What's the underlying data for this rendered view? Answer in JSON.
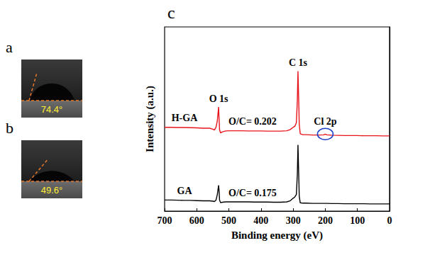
{
  "panels": [
    {
      "letter": "a",
      "contact_angle": {
        "value": 74.4,
        "label": "74.4°"
      }
    },
    {
      "letter": "b",
      "contact_angle": {
        "value": 49.6,
        "label": "49.6°"
      }
    }
  ],
  "chart_data": {
    "type": "line",
    "panel_letter": "c",
    "x_label": "Binding energy (eV)",
    "y_label": "Intensity (a.u.)",
    "x": [
      700,
      680,
      660,
      640,
      620,
      600,
      580,
      560,
      550,
      545,
      540,
      536,
      532,
      531,
      529,
      526,
      520,
      510,
      500,
      480,
      460,
      440,
      420,
      400,
      380,
      360,
      340,
      320,
      310,
      300,
      295,
      290,
      287,
      285,
      283,
      281,
      278,
      270,
      260,
      240,
      220,
      205,
      200,
      195,
      180,
      160,
      140,
      120,
      100,
      80,
      60,
      40,
      20,
      0
    ],
    "xlim": [
      700,
      0
    ],
    "xticks": [
      700,
      600,
      500,
      400,
      300,
      200,
      100,
      0
    ],
    "ylim": [
      0,
      100
    ],
    "tick_labels": "x",
    "grid": false,
    "series": [
      {
        "name": "H-GA",
        "color": "#e8141b",
        "annotation": "O/C= 0.202",
        "values": [
          45.5,
          45.5,
          45.4,
          45.4,
          45.3,
          45.2,
          45.0,
          45.0,
          44.5,
          44.0,
          45.5,
          49.0,
          56.5,
          52.0,
          44.0,
          42.5,
          43.0,
          43.5,
          43.6,
          43.6,
          43.6,
          43.5,
          43.5,
          43.5,
          43.4,
          43.4,
          43.4,
          43.6,
          44.2,
          45.5,
          46.0,
          48.0,
          60.0,
          76.0,
          62.0,
          47.0,
          42.0,
          41.5,
          41.5,
          41.3,
          41.3,
          41.4,
          41.8,
          41.4,
          41.2,
          41.1,
          41.0,
          41.0,
          41.0,
          40.9,
          40.9,
          40.9,
          40.8,
          40.8
        ]
      },
      {
        "name": "GA",
        "color": "#000000",
        "annotation": "O/C= 0.175",
        "values": [
          6.0,
          6.0,
          5.9,
          5.8,
          5.8,
          5.7,
          5.6,
          5.6,
          5.4,
          5.2,
          6.0,
          9.0,
          14.0,
          12.0,
          6.0,
          4.6,
          4.8,
          5.0,
          5.0,
          5.0,
          5.0,
          5.0,
          4.9,
          4.9,
          4.9,
          4.8,
          4.8,
          5.0,
          5.5,
          7.0,
          7.6,
          9.0,
          20.0,
          36.0,
          22.0,
          8.0,
          4.5,
          4.3,
          4.3,
          4.2,
          4.2,
          4.2,
          4.2,
          4.2,
          4.1,
          4.1,
          4.0,
          4.0,
          4.0,
          4.0,
          3.9,
          3.9,
          3.9,
          3.9
        ]
      }
    ],
    "peaks": [
      {
        "label": "O 1s",
        "x": 532
      },
      {
        "label": "C 1s",
        "x": 285
      },
      {
        "label": "Cl 2p",
        "x": 200,
        "color": "#1c3fc8"
      }
    ]
  }
}
